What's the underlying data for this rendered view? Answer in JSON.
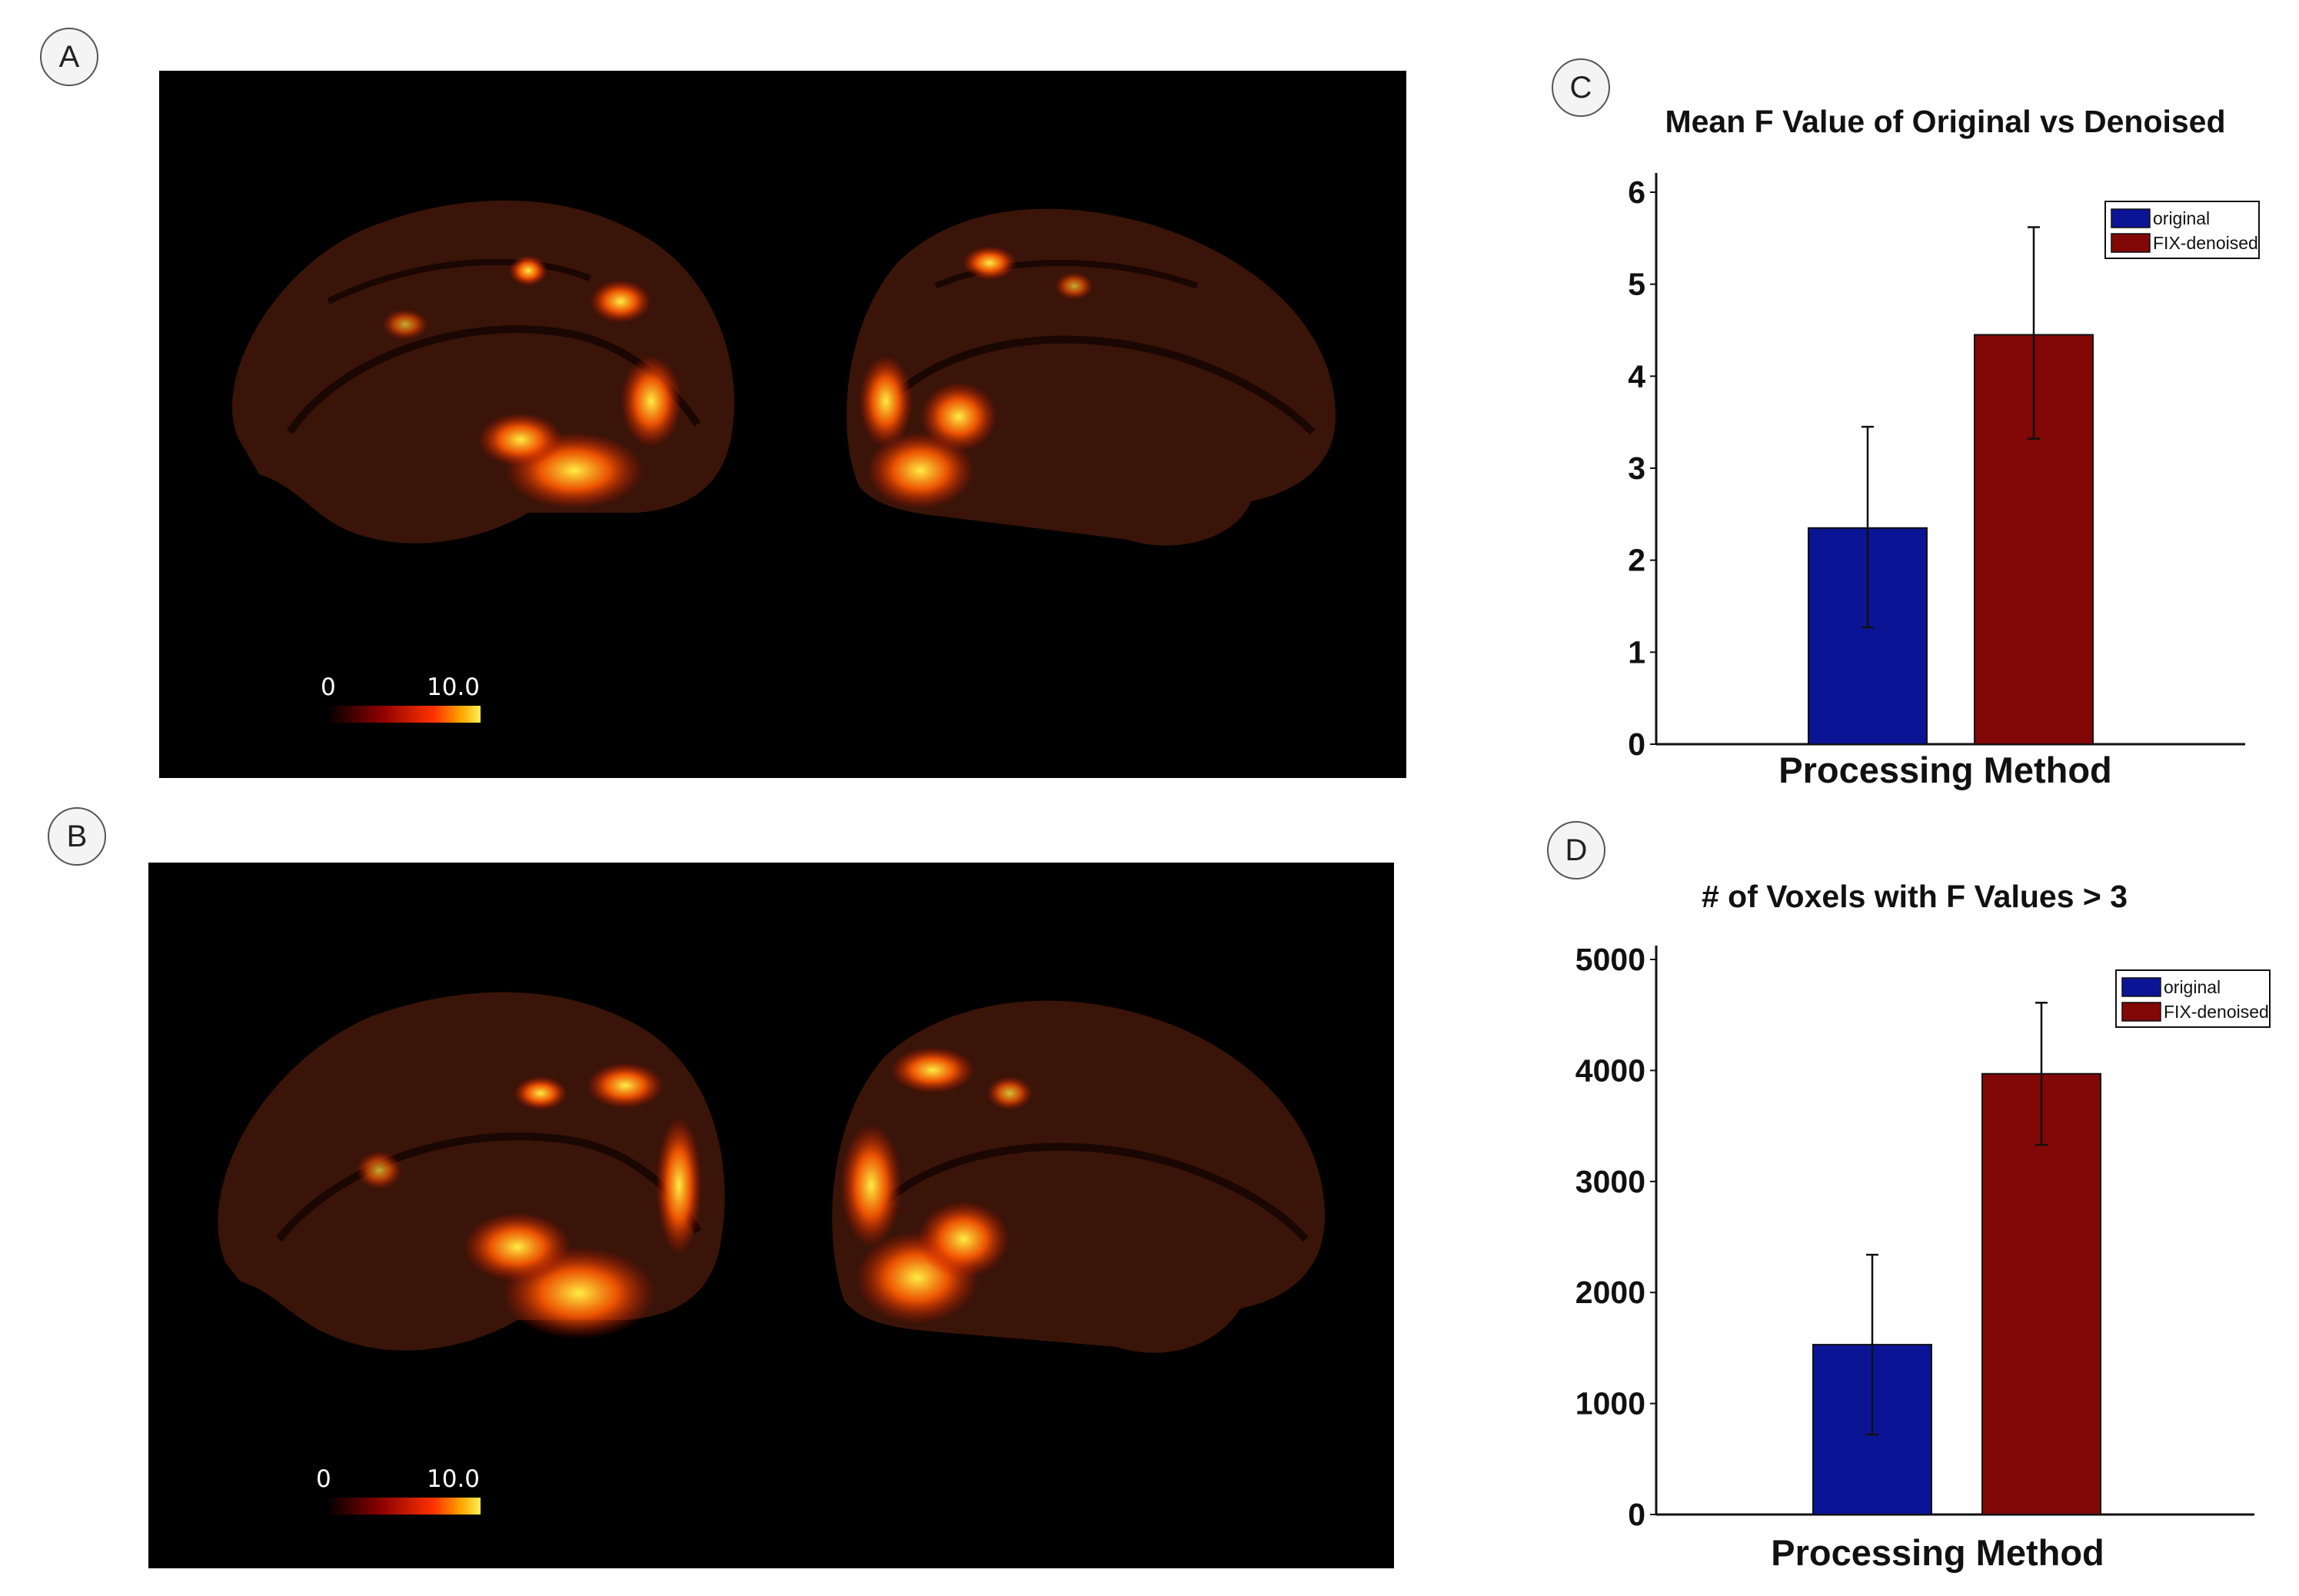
{
  "panels": {
    "a": {
      "letter": "A"
    },
    "b": {
      "letter": "B"
    },
    "c": {
      "letter": "C"
    },
    "d": {
      "letter": "D"
    }
  },
  "colorbar": {
    "min": "0",
    "max": "10.0"
  },
  "colors": {
    "original": "#0b1494",
    "denoised": "#820707"
  },
  "chart_data": [
    {
      "type": "bar",
      "title": "Mean F Value of Original vs Denoised",
      "xlabel": "Processing Method",
      "ylabel": "",
      "categories": [
        "original",
        "FIX-denoised"
      ],
      "values": [
        2.35,
        4.45
      ],
      "errors": [
        [
          1.27,
          3.45
        ],
        [
          3.32,
          5.62
        ]
      ],
      "ylim": [
        0,
        6
      ],
      "yticks": [
        "0",
        "1",
        "2",
        "3",
        "4",
        "5",
        "6"
      ],
      "legend": [
        "original",
        "FIX-denoised"
      ],
      "legend_position": "top-right"
    },
    {
      "type": "bar",
      "title": "# of Voxels with F Values > 3",
      "xlabel": "Processing Method",
      "ylabel": "",
      "categories": [
        "original",
        "FIX-denoised"
      ],
      "values": [
        1530,
        3970
      ],
      "errors": [
        [
          720,
          2340
        ],
        [
          3330,
          4610
        ]
      ],
      "ylim": [
        0,
        5000
      ],
      "yticks": [
        "0",
        "1000",
        "2000",
        "3000",
        "4000",
        "5000"
      ],
      "legend": [
        "original",
        "FIX-denoised"
      ],
      "legend_position": "top-right"
    }
  ]
}
